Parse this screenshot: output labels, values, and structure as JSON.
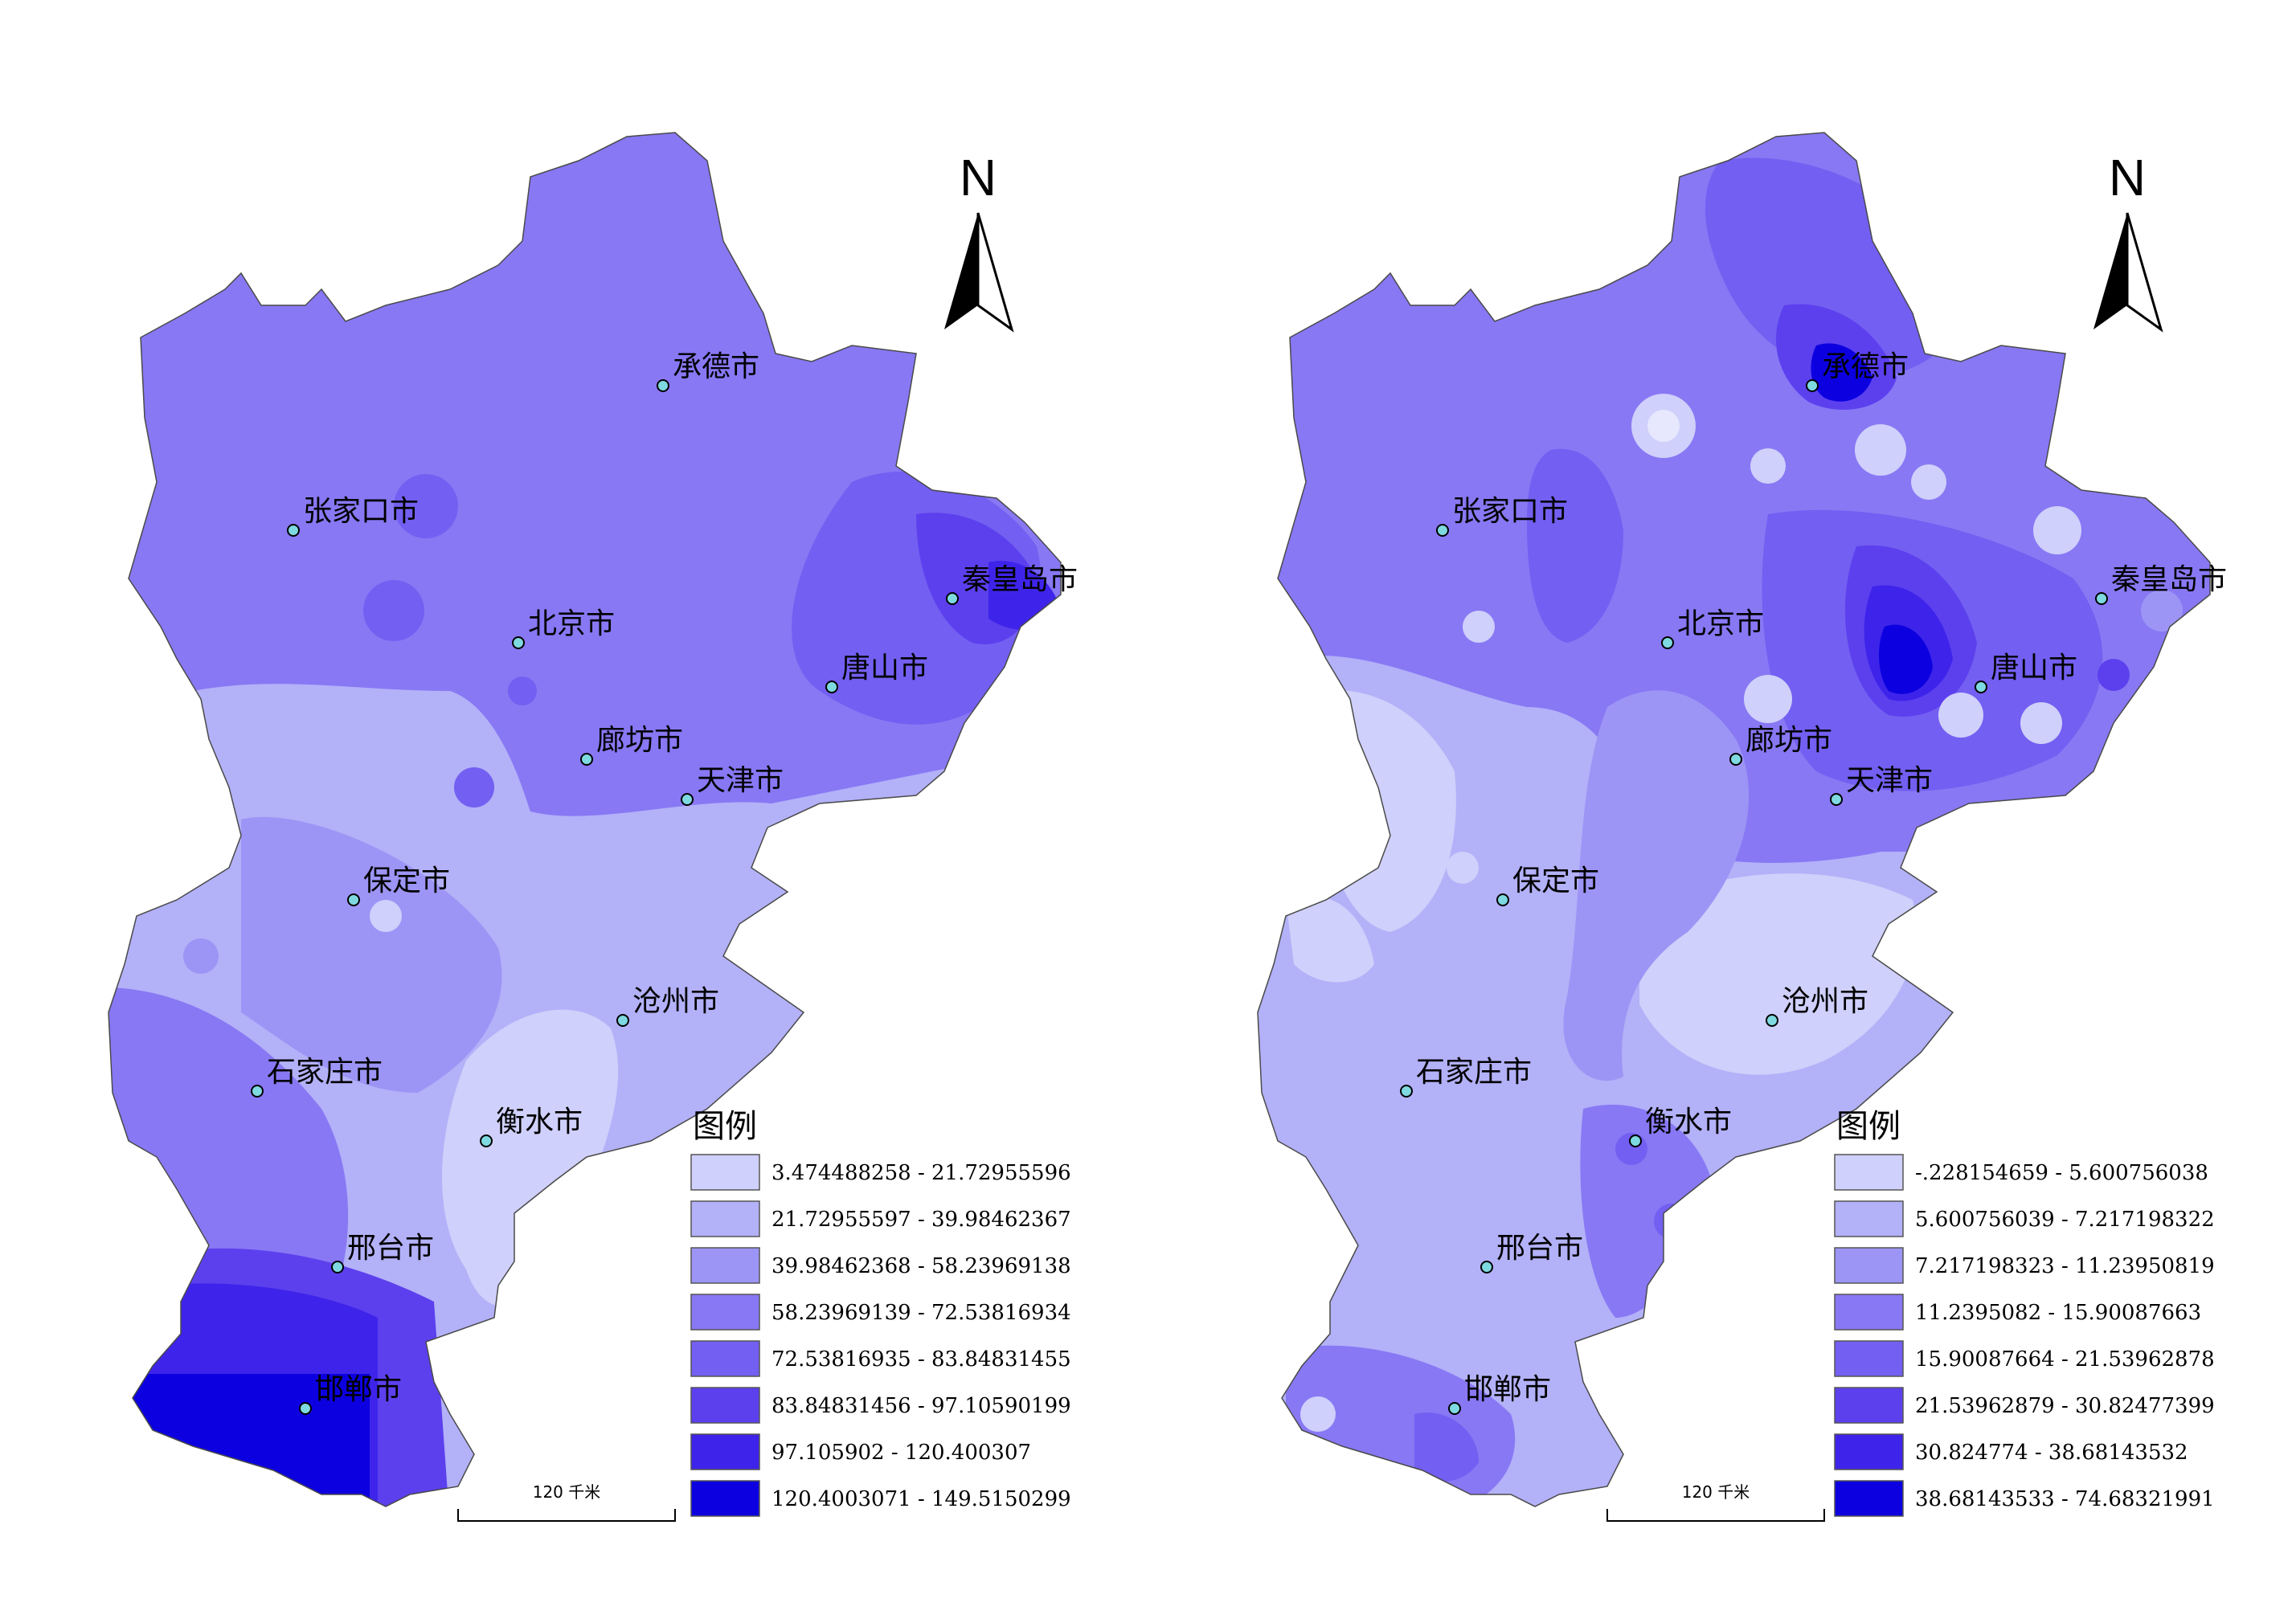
{
  "colors": {
    "c1": "#cfd0fb",
    "c2": "#b3b1f8",
    "c3": "#9c95f5",
    "c4": "#8878f4",
    "c5": "#735ff1",
    "c6": "#5c40ee",
    "c7": "#3e24ea",
    "c8": "#0c00e0",
    "border": "#4a4a4a",
    "city_dot": "#7fd9e0"
  },
  "maps": [
    {
      "id": "left",
      "north_label": "N",
      "scale_label": "120 千米",
      "cities": [
        {
          "name": "承德市"
        },
        {
          "name": "张家口市"
        },
        {
          "name": "秦皇岛市"
        },
        {
          "name": "北京市"
        },
        {
          "name": "唐山市"
        },
        {
          "name": "廊坊市"
        },
        {
          "name": "天津市"
        },
        {
          "name": "保定市"
        },
        {
          "name": "沧州市"
        },
        {
          "name": "石家庄市"
        },
        {
          "name": "衡水市"
        },
        {
          "name": "邢台市"
        },
        {
          "name": "邯郸市"
        }
      ],
      "legend": {
        "title": "图例",
        "items": [
          {
            "label": "3.474488258  -  21.72955596",
            "color": "#cfd0fb"
          },
          {
            "label": "21.72955597  -  39.98462367",
            "color": "#b3b1f8"
          },
          {
            "label": "39.98462368  -  58.23969138",
            "color": "#9c95f5"
          },
          {
            "label": "58.23969139  -  72.53816934",
            "color": "#8878f4"
          },
          {
            "label": "72.53816935  -  83.84831455",
            "color": "#735ff1"
          },
          {
            "label": "83.84831456  -  97.10590199",
            "color": "#5c40ee"
          },
          {
            "label": "97.105902  -  120.400307",
            "color": "#3e24ea"
          },
          {
            "label": "120.4003071  -  149.5150299",
            "color": "#0c00e0"
          }
        ]
      }
    },
    {
      "id": "right",
      "north_label": "N",
      "scale_label": "120 千米",
      "cities": [
        {
          "name": "承德市"
        },
        {
          "name": "张家口市"
        },
        {
          "name": "秦皇岛市"
        },
        {
          "name": "北京市"
        },
        {
          "name": "唐山市"
        },
        {
          "name": "廊坊市"
        },
        {
          "name": "天津市"
        },
        {
          "name": "保定市"
        },
        {
          "name": "沧州市"
        },
        {
          "name": "石家庄市"
        },
        {
          "name": "衡水市"
        },
        {
          "name": "邢台市"
        },
        {
          "name": "邯郸市"
        }
      ],
      "legend": {
        "title": "图例",
        "items": [
          {
            "label": "-.228154659  -  5.600756038",
            "color": "#cfd0fb"
          },
          {
            "label": "5.600756039  -  7.217198322",
            "color": "#b3b1f8"
          },
          {
            "label": "7.217198323  -  11.23950819",
            "color": "#9c95f5"
          },
          {
            "label": "11.2395082  -  15.90087663",
            "color": "#8878f4"
          },
          {
            "label": "15.90087664  -  21.53962878",
            "color": "#735ff1"
          },
          {
            "label": "21.53962879  -  30.82477399",
            "color": "#5c40ee"
          },
          {
            "label": "30.824774  -  38.68143532",
            "color": "#3e24ea"
          },
          {
            "label": "38.68143533  -  74.68321991",
            "color": "#0c00e0"
          }
        ]
      }
    }
  ]
}
